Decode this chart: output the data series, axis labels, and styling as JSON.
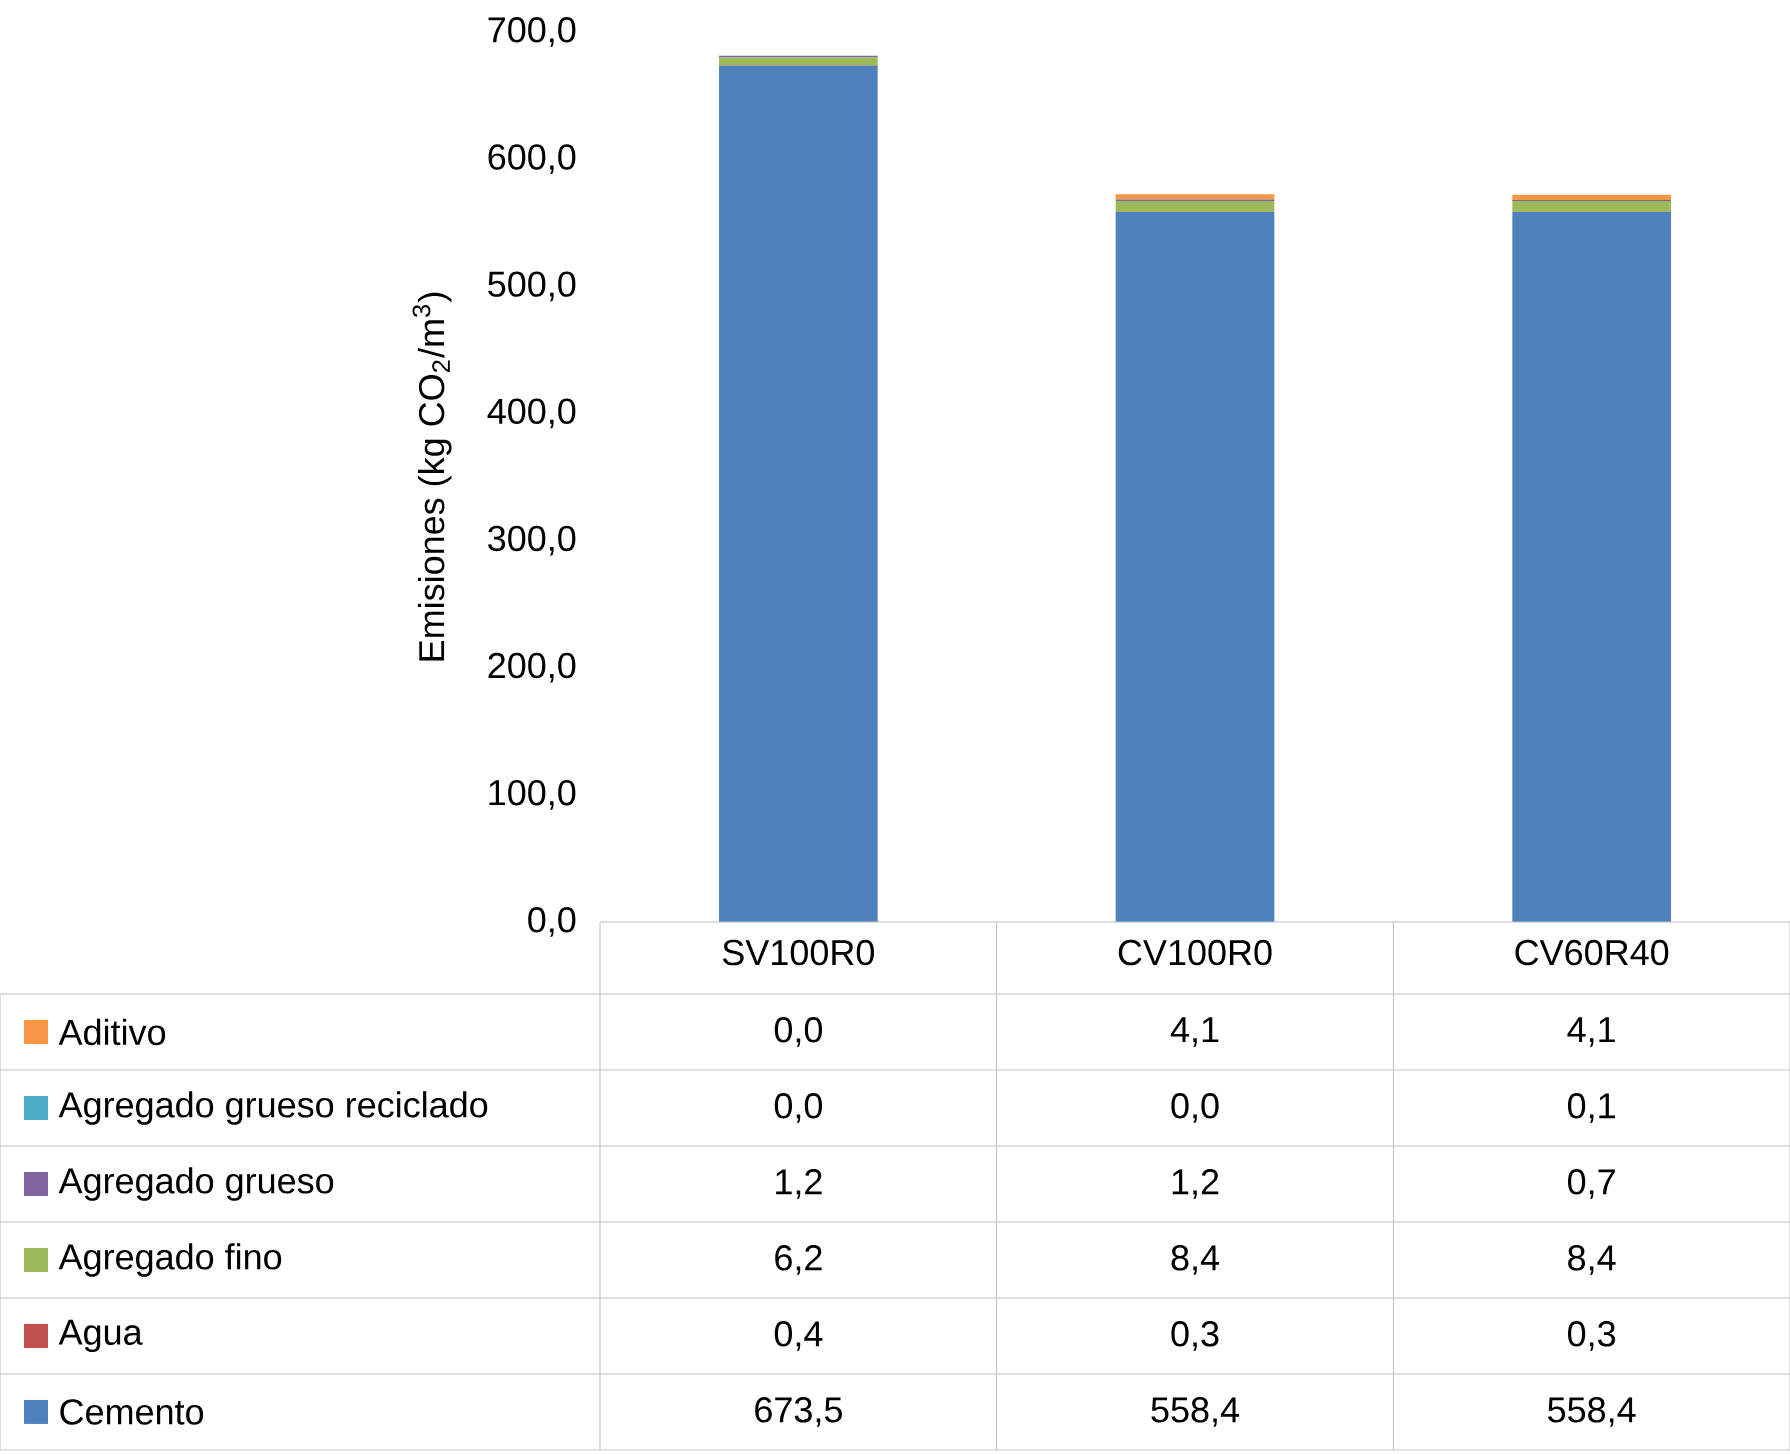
{
  "chart_data": {
    "type": "bar",
    "stacked": true,
    "ylabel": "Emisiones (kg CO$_{2}$/m$^{3}$)",
    "categories": [
      "SV100R0",
      "CV100R0",
      "CV60R40"
    ],
    "ylim": [
      0,
      700
    ],
    "yticks": [
      {
        "value": 0,
        "label": "0,0"
      },
      {
        "value": 100,
        "label": "100,0"
      },
      {
        "value": 200,
        "label": "200,0"
      },
      {
        "value": 300,
        "label": "300,0"
      },
      {
        "value": 400,
        "label": "400,0"
      },
      {
        "value": 500,
        "label": "500,0"
      },
      {
        "value": 600,
        "label": "600,0"
      },
      {
        "value": 700,
        "label": "700,0"
      }
    ],
    "legend": "bottom",
    "series": [
      {
        "name": "Cemento",
        "color": "#4f81bd",
        "values": [
          673.5,
          558.4,
          558.4
        ],
        "value_labels": [
          "673,5",
          "558,4",
          "558,4"
        ]
      },
      {
        "name": "Agua",
        "color": "#c0504d",
        "values": [
          0.4,
          0.3,
          0.3
        ],
        "value_labels": [
          "0,4",
          "0,3",
          "0,3"
        ]
      },
      {
        "name": "Agregado fino",
        "color": "#9bbb59",
        "values": [
          6.2,
          8.4,
          8.4
        ],
        "value_labels": [
          "6,2",
          "8,4",
          "8,4"
        ]
      },
      {
        "name": "Agregado grueso",
        "color": "#8064a2",
        "values": [
          1.2,
          1.2,
          0.7
        ],
        "value_labels": [
          "1,2",
          "1,2",
          "0,7"
        ]
      },
      {
        "name": "Agregado grueso reciclado",
        "color": "#4bacc6",
        "values": [
          0.0,
          0.0,
          0.1
        ],
        "value_labels": [
          "0,0",
          "0,0",
          "0,1"
        ]
      },
      {
        "name": "Aditivo",
        "color": "#f79646",
        "values": [
          0.0,
          4.1,
          4.1
        ],
        "value_labels": [
          "0,0",
          "4,1",
          "4,1"
        ]
      }
    ]
  }
}
